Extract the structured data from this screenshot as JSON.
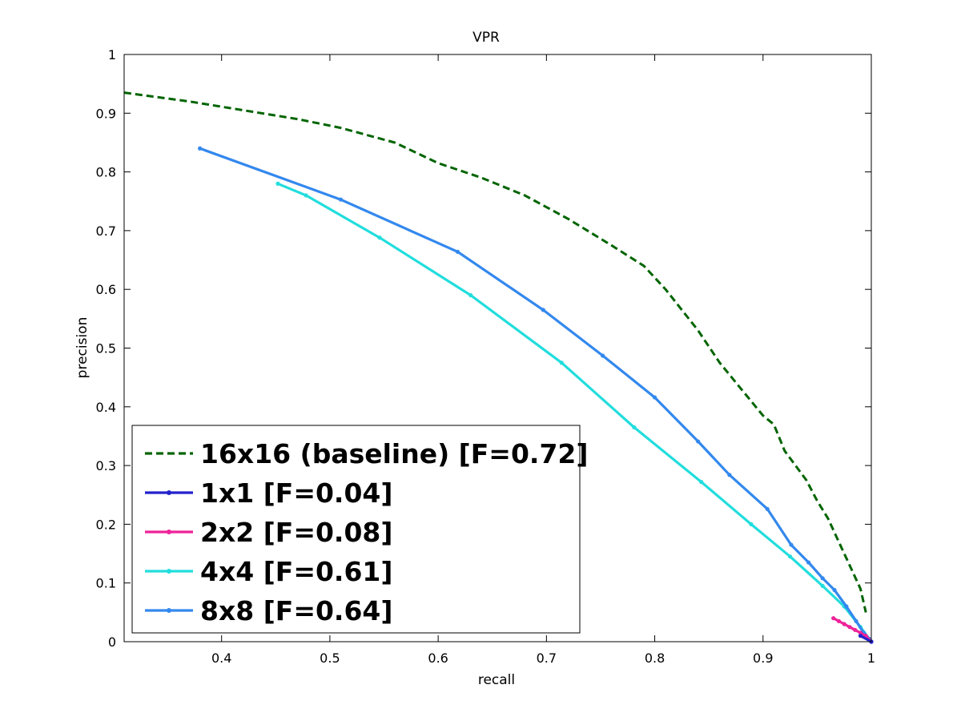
{
  "chart_data": {
    "type": "line",
    "title": "VPR",
    "xlabel": "recall",
    "ylabel": "precision",
    "xlim": [
      0.31,
      1.0
    ],
    "ylim": [
      0,
      1
    ],
    "xticks": [
      "0.4",
      "0.5",
      "0.6",
      "0.7",
      "0.8",
      "0.9",
      "1"
    ],
    "yticks": [
      "0",
      "0.1",
      "0.2",
      "0.3",
      "0.4",
      "0.5",
      "0.6",
      "0.7",
      "0.8",
      "0.9",
      "1"
    ],
    "grid": false,
    "legend_position": "bottom-left",
    "series": [
      {
        "name": "16x16 (baseline) [F=0.72]",
        "color": "#006400",
        "dash": "dashed",
        "markers": false,
        "x": [
          0.31,
          0.33,
          0.37,
          0.42,
          0.47,
          0.51,
          0.56,
          0.6,
          0.64,
          0.68,
          0.72,
          0.76,
          0.79,
          0.81,
          0.84,
          0.86,
          0.88,
          0.9,
          0.91,
          0.92,
          0.94,
          0.95,
          0.96,
          0.97,
          0.98,
          0.99,
          0.995
        ],
        "y": [
          0.935,
          0.93,
          0.92,
          0.905,
          0.89,
          0.875,
          0.85,
          0.815,
          0.79,
          0.76,
          0.72,
          0.675,
          0.64,
          0.6,
          0.53,
          0.475,
          0.43,
          0.385,
          0.37,
          0.325,
          0.275,
          0.24,
          0.21,
          0.17,
          0.13,
          0.09,
          0.05
        ]
      },
      {
        "name": "1x1 [F=0.04]",
        "color": "#2222cc",
        "dash": "solid",
        "markers": true,
        "x": [
          0.99,
          1.0
        ],
        "y": [
          0.01,
          0.0
        ]
      },
      {
        "name": "2x2 [F=0.08]",
        "color": "#ee2299",
        "dash": "solid",
        "markers": true,
        "x": [
          0.965,
          0.97,
          0.975,
          0.98,
          0.985,
          0.99,
          0.995,
          1.0
        ],
        "y": [
          0.04,
          0.035,
          0.03,
          0.025,
          0.02,
          0.015,
          0.01,
          0.0
        ]
      },
      {
        "name": "4x4 [F=0.61]",
        "color": "#22dddd",
        "dash": "solid",
        "markers": true,
        "x": [
          0.452,
          0.478,
          0.546,
          0.63,
          0.714,
          0.781,
          0.843,
          0.889,
          0.925,
          0.955,
          0.975,
          0.99,
          1.0
        ],
        "y": [
          0.78,
          0.76,
          0.688,
          0.59,
          0.475,
          0.365,
          0.272,
          0.2,
          0.145,
          0.095,
          0.06,
          0.025,
          0.0
        ]
      },
      {
        "name": "8x8 [F=0.64]",
        "color": "#3388ee",
        "dash": "solid",
        "markers": true,
        "x": [
          0.38,
          0.51,
          0.618,
          0.697,
          0.752,
          0.8,
          0.84,
          0.869,
          0.904,
          0.926,
          0.942,
          0.955,
          0.966,
          0.977,
          0.986,
          0.993,
          0.998,
          1.0
        ],
        "y": [
          0.84,
          0.753,
          0.664,
          0.565,
          0.487,
          0.416,
          0.341,
          0.284,
          0.226,
          0.165,
          0.135,
          0.108,
          0.088,
          0.06,
          0.035,
          0.015,
          0.005,
          0.0
        ]
      }
    ]
  }
}
